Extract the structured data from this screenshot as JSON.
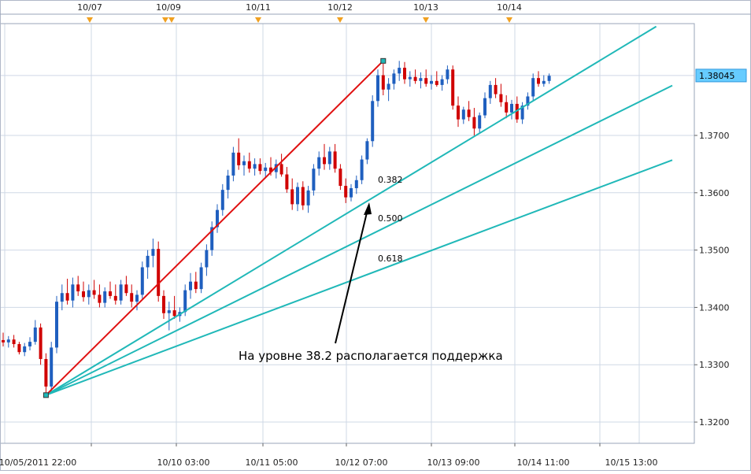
{
  "chart_data": {
    "type": "candlestick",
    "instrument_price_last": "1.38045",
    "x_axis_labels": [
      "10/05/2011 22:00",
      "10/10 03:00",
      "10/11 05:00",
      "10/12 07:00",
      "10/13 09:00",
      "10/14 11:00",
      "10/15 13:00"
    ],
    "top_axis_labels": [
      "10/07",
      "10/09",
      "10/11",
      "10/12",
      "10/13",
      "10/14"
    ],
    "y_ticks": [
      1.32,
      1.33,
      1.34,
      1.35,
      1.36,
      1.37
    ],
    "y_tick_labels": [
      "1.3200",
      "1.3300",
      "1.3400",
      "1.3500",
      "1.3600",
      "1.3700"
    ],
    "ylim": [
      1.3163,
      1.3895
    ],
    "grid": true,
    "candles": [
      [
        1.3343,
        1.3356,
        1.3332,
        1.3339
      ],
      [
        1.3339,
        1.335,
        1.333,
        1.3344
      ],
      [
        1.3344,
        1.3352,
        1.333,
        1.3336
      ],
      [
        1.3336,
        1.334,
        1.3318,
        1.3322
      ],
      [
        1.3322,
        1.3338,
        1.3315,
        1.3332
      ],
      [
        1.3332,
        1.3348,
        1.3325,
        1.334
      ],
      [
        1.334,
        1.3378,
        1.3335,
        1.3365
      ],
      [
        1.3365,
        1.3372,
        1.33,
        1.331
      ],
      [
        1.331,
        1.332,
        1.3247,
        1.3262
      ],
      [
        1.3262,
        1.334,
        1.325,
        1.333
      ],
      [
        1.333,
        1.342,
        1.332,
        1.341
      ],
      [
        1.341,
        1.344,
        1.3395,
        1.3425
      ],
      [
        1.3425,
        1.345,
        1.3405,
        1.3412
      ],
      [
        1.3412,
        1.3452,
        1.34,
        1.344
      ],
      [
        1.344,
        1.3455,
        1.342,
        1.3428
      ],
      [
        1.3428,
        1.3445,
        1.341,
        1.3418
      ],
      [
        1.3418,
        1.344,
        1.3405,
        1.343
      ],
      [
        1.343,
        1.3448,
        1.3415,
        1.3422
      ],
      [
        1.3422,
        1.344,
        1.34,
        1.3408
      ],
      [
        1.3408,
        1.3435,
        1.34,
        1.3428
      ],
      [
        1.3428,
        1.3445,
        1.3415,
        1.342
      ],
      [
        1.342,
        1.344,
        1.3405,
        1.3412
      ],
      [
        1.3412,
        1.3448,
        1.3405,
        1.344
      ],
      [
        1.344,
        1.3455,
        1.342,
        1.3425
      ],
      [
        1.3425,
        1.344,
        1.34,
        1.341
      ],
      [
        1.341,
        1.343,
        1.3395,
        1.3422
      ],
      [
        1.3422,
        1.348,
        1.3415,
        1.347
      ],
      [
        1.347,
        1.35,
        1.345,
        1.349
      ],
      [
        1.349,
        1.352,
        1.347,
        1.3502
      ],
      [
        1.3502,
        1.3515,
        1.341,
        1.342
      ],
      [
        1.342,
        1.343,
        1.338,
        1.339
      ],
      [
        1.339,
        1.341,
        1.336,
        1.3395
      ],
      [
        1.3395,
        1.342,
        1.338,
        1.3385
      ],
      [
        1.3385,
        1.34,
        1.3375,
        1.3392
      ],
      [
        1.3392,
        1.344,
        1.3385,
        1.343
      ],
      [
        1.343,
        1.346,
        1.3415,
        1.3445
      ],
      [
        1.3445,
        1.3462,
        1.3425,
        1.3432
      ],
      [
        1.3432,
        1.3478,
        1.3425,
        1.347
      ],
      [
        1.347,
        1.351,
        1.3455,
        1.35
      ],
      [
        1.35,
        1.355,
        1.349,
        1.354
      ],
      [
        1.354,
        1.358,
        1.353,
        1.357
      ],
      [
        1.357,
        1.3615,
        1.356,
        1.3605
      ],
      [
        1.3605,
        1.364,
        1.359,
        1.363
      ],
      [
        1.363,
        1.368,
        1.362,
        1.367
      ],
      [
        1.367,
        1.3695,
        1.364,
        1.3648
      ],
      [
        1.3648,
        1.3665,
        1.363,
        1.3655
      ],
      [
        1.3655,
        1.367,
        1.3635,
        1.3642
      ],
      [
        1.3642,
        1.366,
        1.363,
        1.365
      ],
      [
        1.365,
        1.366,
        1.3632,
        1.3638
      ],
      [
        1.3638,
        1.3652,
        1.3625,
        1.3644
      ],
      [
        1.3644,
        1.3662,
        1.363,
        1.3636
      ],
      [
        1.3636,
        1.3658,
        1.3625,
        1.365
      ],
      [
        1.365,
        1.3668,
        1.3628,
        1.3632
      ],
      [
        1.3632,
        1.3645,
        1.36,
        1.3606
      ],
      [
        1.3606,
        1.3625,
        1.357,
        1.358
      ],
      [
        1.358,
        1.3618,
        1.3568,
        1.361
      ],
      [
        1.361,
        1.362,
        1.357,
        1.3578
      ],
      [
        1.3578,
        1.3612,
        1.3565,
        1.3604
      ],
      [
        1.3604,
        1.365,
        1.3595,
        1.3642
      ],
      [
        1.3642,
        1.3672,
        1.363,
        1.3662
      ],
      [
        1.3662,
        1.3685,
        1.364,
        1.365
      ],
      [
        1.365,
        1.368,
        1.364,
        1.3672
      ],
      [
        1.3672,
        1.3685,
        1.3635,
        1.3642
      ],
      [
        1.3642,
        1.365,
        1.3605,
        1.3612
      ],
      [
        1.3612,
        1.3625,
        1.3582,
        1.3592
      ],
      [
        1.3592,
        1.3615,
        1.3585,
        1.3608
      ],
      [
        1.3608,
        1.363,
        1.3598,
        1.3622
      ],
      [
        1.3622,
        1.3665,
        1.3615,
        1.3658
      ],
      [
        1.3658,
        1.3695,
        1.365,
        1.369
      ],
      [
        1.369,
        1.377,
        1.368,
        1.376
      ],
      [
        1.376,
        1.3815,
        1.375,
        1.3805
      ],
      [
        1.3805,
        1.3825,
        1.377,
        1.378
      ],
      [
        1.378,
        1.38,
        1.376,
        1.379
      ],
      [
        1.379,
        1.3815,
        1.378,
        1.3808
      ],
      [
        1.3808,
        1.383,
        1.3795,
        1.3818
      ],
      [
        1.3818,
        1.3828,
        1.379,
        1.3798
      ],
      [
        1.3798,
        1.3812,
        1.3785,
        1.3802
      ],
      [
        1.3802,
        1.3815,
        1.379,
        1.3795
      ],
      [
        1.3795,
        1.381,
        1.3782,
        1.38
      ],
      [
        1.38,
        1.3815,
        1.3785,
        1.379
      ],
      [
        1.379,
        1.3805,
        1.378,
        1.3795
      ],
      [
        1.3795,
        1.3812,
        1.3785,
        1.3788
      ],
      [
        1.3788,
        1.3805,
        1.3778,
        1.3798
      ],
      [
        1.3798,
        1.3822,
        1.379,
        1.3815
      ],
      [
        1.3815,
        1.3822,
        1.3745,
        1.3752
      ],
      [
        1.3752,
        1.3768,
        1.3715,
        1.3728
      ],
      [
        1.3728,
        1.375,
        1.372,
        1.3745
      ],
      [
        1.3745,
        1.376,
        1.3725,
        1.3732
      ],
      [
        1.3732,
        1.3748,
        1.37,
        1.3712
      ],
      [
        1.3712,
        1.374,
        1.3705,
        1.3735
      ],
      [
        1.3735,
        1.3775,
        1.373,
        1.3765
      ],
      [
        1.3765,
        1.3795,
        1.3755,
        1.3788
      ],
      [
        1.3788,
        1.38,
        1.3765,
        1.3772
      ],
      [
        1.3772,
        1.379,
        1.375,
        1.3758
      ],
      [
        1.3758,
        1.377,
        1.373,
        1.374
      ],
      [
        1.374,
        1.3762,
        1.3728,
        1.3755
      ],
      [
        1.3755,
        1.3768,
        1.3722,
        1.3728
      ],
      [
        1.3728,
        1.3758,
        1.372,
        1.3752
      ],
      [
        1.3752,
        1.3775,
        1.3745,
        1.3768
      ],
      [
        1.3768,
        1.3808,
        1.376,
        1.38
      ],
      [
        1.38,
        1.3812,
        1.3785,
        1.379
      ],
      [
        1.379,
        1.3805,
        1.3785,
        1.3795
      ],
      [
        1.3795,
        1.3808,
        1.379,
        1.3804
      ]
    ],
    "trend_line": {
      "from": {
        "i": 8,
        "y": 1.3247
      },
      "to": {
        "i": 71,
        "y": 1.383
      }
    },
    "fan_lines": [
      {
        "level": "0.382",
        "label": "0.382",
        "end_i": 122,
        "end_y": 1.389
      },
      {
        "level": "0.500",
        "label": "0.500",
        "end_i": 125,
        "end_y": 1.3787
      },
      {
        "level": "0.618",
        "label": "0.618",
        "end_i": 125,
        "end_y": 1.3657
      }
    ],
    "annotation": "На уровне 38.2 располагается поддержка"
  },
  "colors": {
    "grid": "#cfd8e6",
    "bull": "#1f5fbf",
    "bear": "#d00000",
    "trend": "#e01010",
    "fan": "#20b8b8",
    "price_tag_bg": "#66ccff",
    "event_marker": "#f0a020"
  }
}
